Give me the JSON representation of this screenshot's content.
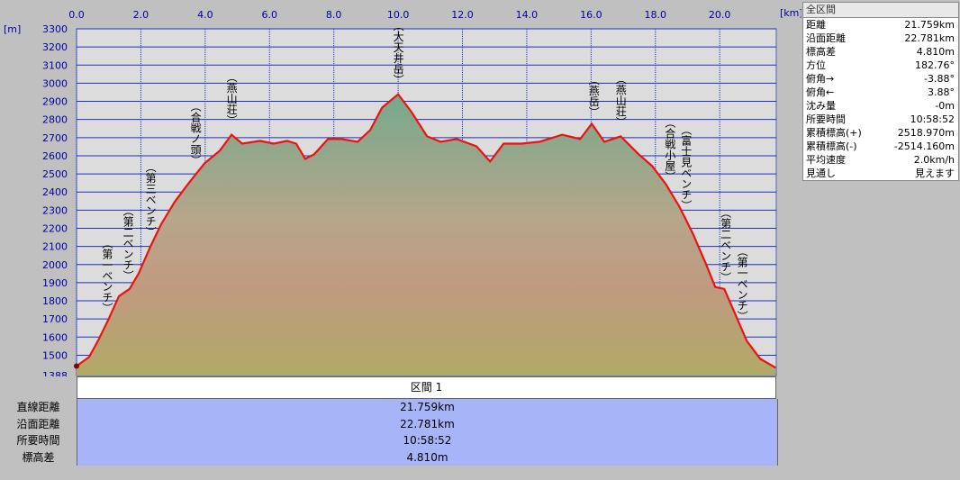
{
  "chart_data": {
    "type": "area",
    "xlabel": "[km]",
    "ylabel": "[m]",
    "xlim": [
      0,
      21.759
    ],
    "ylim": [
      1388,
      3300
    ],
    "xticks": [
      {
        "value": 0,
        "label": "0.0"
      },
      {
        "value": 2,
        "label": "2.0"
      },
      {
        "value": 4,
        "label": "4.0"
      },
      {
        "value": 6,
        "label": "6.0"
      },
      {
        "value": 8,
        "label": "8.0"
      },
      {
        "value": 10,
        "label": "10.0"
      },
      {
        "value": 12,
        "label": "12.0"
      },
      {
        "value": 14,
        "label": "14.0"
      },
      {
        "value": 16,
        "label": "16.0"
      },
      {
        "value": 18,
        "label": "18.0"
      },
      {
        "value": 20,
        "label": "20.0"
      }
    ],
    "yticks": [
      1388,
      1500,
      1600,
      1700,
      1800,
      1900,
      2000,
      2100,
      2200,
      2300,
      2400,
      2500,
      2600,
      2700,
      2800,
      2900,
      3000,
      3100,
      3200,
      3300
    ],
    "grid": true,
    "color": "#ee1111",
    "x": [
      0,
      0.39,
      0.67,
      1.0,
      1.32,
      1.65,
      1.93,
      2.3,
      2.63,
      3.05,
      3.47,
      3.98,
      4.45,
      4.82,
      5.15,
      5.71,
      6.13,
      6.55,
      6.83,
      7.11,
      7.39,
      7.82,
      8.24,
      8.74,
      9.13,
      9.5,
      10.0,
      10.42,
      10.9,
      11.32,
      11.82,
      12.44,
      12.86,
      13.28,
      13.84,
      14.4,
      15.1,
      15.66,
      16.02,
      16.41,
      16.92,
      17.48,
      17.9,
      18.32,
      18.74,
      19.16,
      19.58,
      19.86,
      20.14,
      20.42,
      20.84,
      21.26,
      21.74
    ],
    "values": [
      1440,
      1490,
      1580,
      1700,
      1826,
      1866,
      1950,
      2100,
      2222,
      2345,
      2445,
      2558,
      2627,
      2716,
      2667,
      2682,
      2667,
      2682,
      2667,
      2583,
      2608,
      2692,
      2692,
      2677,
      2741,
      2865,
      2939,
      2840,
      2707,
      2677,
      2692,
      2652,
      2568,
      2667,
      2667,
      2677,
      2716,
      2692,
      2776,
      2677,
      2707,
      2608,
      2543,
      2445,
      2321,
      2172,
      2000,
      1876,
      1866,
      1752,
      1579,
      1480,
      1431
    ],
    "annotations": [
      {
        "text": "（第一ベンチ）",
        "x": 0.95
      },
      {
        "text": "（第二ベンチ）",
        "x": 1.6
      },
      {
        "text": "（第三ベンチ）",
        "x": 2.3
      },
      {
        "text": "（合戦ノ頭）",
        "x": 3.7
      },
      {
        "text": "（燕山荘）",
        "x": 4.82
      },
      {
        "text": "（大天井岳）",
        "x": 10.0
      },
      {
        "text": "（燕岳）",
        "x": 16.08
      },
      {
        "text": "（燕山荘）",
        "x": 16.92
      },
      {
        "text": "（合戦小屋）",
        "x": 18.45
      },
      {
        "text": "（富士見ベンチ）",
        "x": 18.95
      },
      {
        "text": "（第二ベンチ）",
        "x": 20.18
      },
      {
        "text": "（第一ベンチ）",
        "x": 20.7
      }
    ]
  },
  "summary": {
    "title": "全区間",
    "rows": [
      [
        "距離",
        "21.759km"
      ],
      [
        "沿面距離",
        "22.781km"
      ],
      [
        "標高差",
        "4.810m"
      ],
      [
        "方位",
        "182.76°"
      ],
      [
        "俯角→",
        "-3.88°"
      ],
      [
        "俯角←",
        "3.88°"
      ],
      [
        "沈み量",
        "-0m"
      ],
      [
        "所要時間",
        "10:58:52"
      ],
      [
        "累積標高(+)",
        "2518.970m"
      ],
      [
        "累積標高(-)",
        "-2514.160m"
      ],
      [
        "平均速度",
        "2.0km/h"
      ],
      [
        "見通し",
        "見えます"
      ]
    ]
  },
  "section": {
    "title": "区間 1",
    "rows": [
      [
        "直線距離",
        "21.759km"
      ],
      [
        "沿面距離",
        "22.781km"
      ],
      [
        "所要時間",
        "10:58:52"
      ],
      [
        "標高差",
        "4.810m"
      ]
    ]
  }
}
